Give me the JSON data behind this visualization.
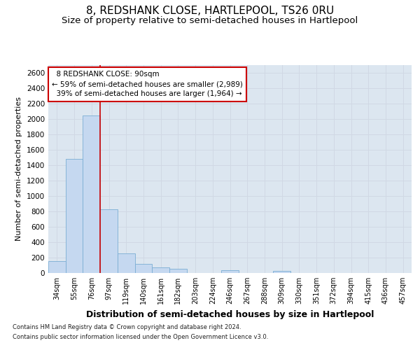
{
  "title": "8, REDSHANK CLOSE, HARTLEPOOL, TS26 0RU",
  "subtitle": "Size of property relative to semi-detached houses in Hartlepool",
  "xlabel": "Distribution of semi-detached houses by size in Hartlepool",
  "ylabel": "Number of semi-detached properties",
  "footnote1": "Contains HM Land Registry data © Crown copyright and database right 2024.",
  "footnote2": "Contains public sector information licensed under the Open Government Licence v3.0.",
  "bar_labels": [
    "34sqm",
    "55sqm",
    "76sqm",
    "97sqm",
    "119sqm",
    "140sqm",
    "161sqm",
    "182sqm",
    "203sqm",
    "224sqm",
    "246sqm",
    "267sqm",
    "288sqm",
    "309sqm",
    "330sqm",
    "351sqm",
    "372sqm",
    "394sqm",
    "415sqm",
    "436sqm",
    "457sqm"
  ],
  "bar_values": [
    155,
    1475,
    2040,
    830,
    255,
    120,
    70,
    50,
    0,
    0,
    40,
    0,
    0,
    30,
    0,
    0,
    0,
    0,
    0,
    0,
    0
  ],
  "bar_color": "#c5d8f0",
  "bar_edge_color": "#7aadd4",
  "property_line_label": "8 REDSHANK CLOSE: 90sqm",
  "pct_smaller": 59,
  "pct_smaller_count": "2,989",
  "pct_larger": 39,
  "pct_larger_count": "1,964",
  "ylim": [
    0,
    2700
  ],
  "yticks": [
    0,
    200,
    400,
    600,
    800,
    1000,
    1200,
    1400,
    1600,
    1800,
    2000,
    2200,
    2400,
    2600
  ],
  "grid_color": "#d0d8e4",
  "bg_color": "#dce6f0",
  "title_fontsize": 11,
  "subtitle_fontsize": 9.5,
  "xlabel_fontsize": 9,
  "ylabel_fontsize": 8
}
